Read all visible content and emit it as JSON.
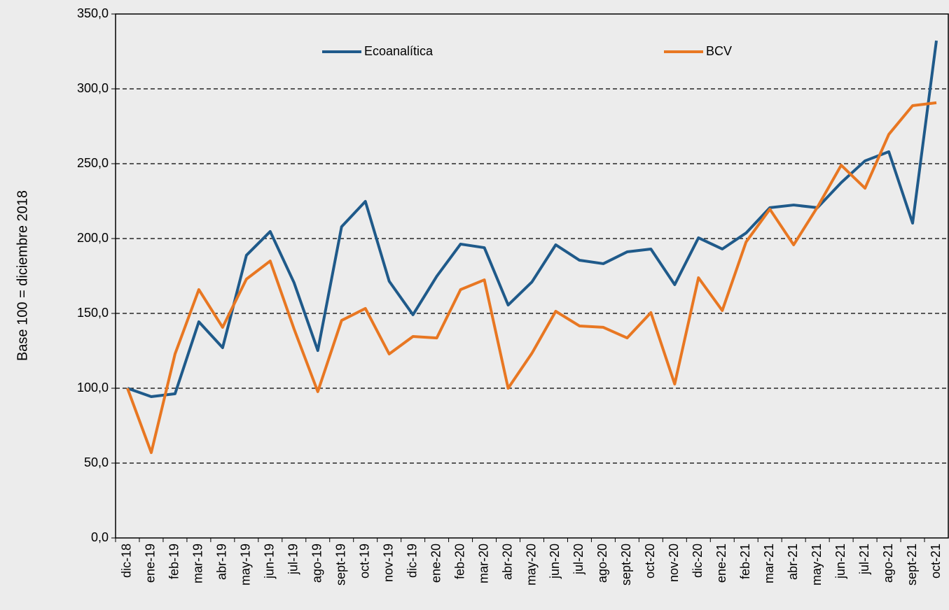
{
  "chart_data": {
    "type": "line",
    "y_label": "Base 100 = diciembre 2018",
    "categories": [
      "dic-18",
      "ene-19",
      "feb-19",
      "mar-19",
      "abr-19",
      "may-19",
      "jun-19",
      "jul-19",
      "ago-19",
      "sept-19",
      "oct-19",
      "nov-19",
      "dic-19",
      "ene-20",
      "feb-20",
      "mar-20",
      "abr-20",
      "may-20",
      "jun-20",
      "jul-20",
      "ago-20",
      "sept-20",
      "oct-20",
      "nov-20",
      "dic-20",
      "ene-21",
      "feb-21",
      "mar-21",
      "abr-21",
      "may-21",
      "jun-21",
      "jul-21",
      "ago-21",
      "sept-21",
      "oct-21"
    ],
    "series": [
      {
        "name": "Ecoanalítica",
        "color": "#1f5a8a",
        "values": [
          100,
          94.4,
          96.3,
          144.4,
          127.1,
          188.8,
          204.7,
          170.6,
          125.2,
          207.9,
          224.8,
          171.5,
          149.1,
          174.8,
          196.3,
          193.9,
          155.6,
          171,
          195.8,
          185.5,
          183.2,
          191.1,
          193,
          169.2,
          200.5,
          193,
          203.7,
          220.6,
          222.4,
          220.6,
          237.4,
          251.9,
          258,
          210.3,
          332.2
        ]
      },
      {
        "name": "BCV",
        "color": "#e87722",
        "values": [
          100,
          57,
          122.9,
          165.9,
          140.7,
          172.9,
          185,
          139.7,
          97.7,
          145.3,
          153.3,
          122.9,
          134.6,
          133.6,
          165.9,
          172.4,
          100,
          123.4,
          151.4,
          141.6,
          140.7,
          133.6,
          150.5,
          102.8,
          173.8,
          151.9,
          197.7,
          219.6,
          195.8,
          221,
          249,
          233.6,
          269.6,
          288.8,
          290.7
        ]
      }
    ],
    "ylim": [
      0,
      350
    ],
    "yticks": [
      {
        "value": 0,
        "label": "0,0"
      },
      {
        "value": 50,
        "label": "50,0"
      },
      {
        "value": 100,
        "label": "100,0"
      },
      {
        "value": 150,
        "label": "150,0"
      },
      {
        "value": 200,
        "label": "200,0"
      },
      {
        "value": 250,
        "label": "250,0"
      },
      {
        "value": 300,
        "label": "300,0"
      },
      {
        "value": 350,
        "label": "350,0"
      }
    ],
    "grid": true,
    "legend": "top"
  }
}
